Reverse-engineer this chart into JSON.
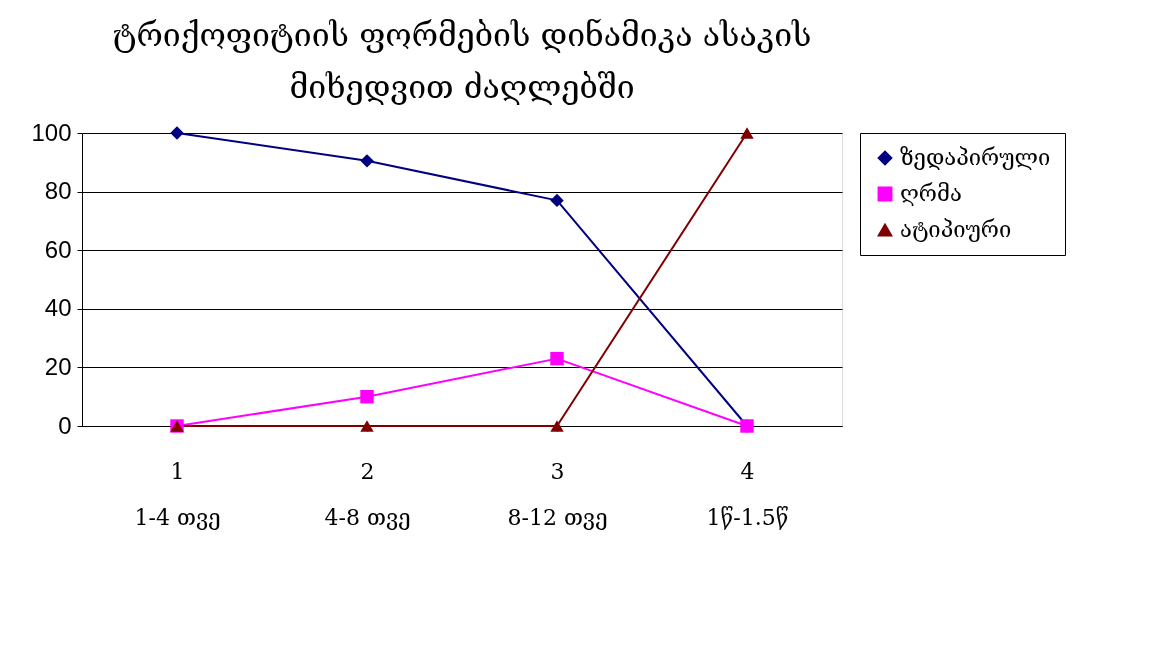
{
  "chart_data": {
    "type": "line",
    "title": "ტრიქოფიტიის ფორმების დინამიკა ასაკის\nმიხედვით ძაღლებში",
    "categories": [
      "1\n1-4 თვე",
      "2\n4-8 თვე",
      "3\n8-12 თვე",
      "4\n1წ-1.5წ"
    ],
    "series": [
      {
        "name": "ზედაპირული",
        "color": "#000080",
        "marker": "diamond",
        "values": [
          100,
          90.5,
          77,
          0
        ]
      },
      {
        "name": "ღრმა",
        "color": "#ff00ff",
        "marker": "square",
        "values": [
          0,
          10,
          23,
          0
        ]
      },
      {
        "name": "ატიპიური",
        "color": "#800000",
        "marker": "triangle",
        "values": [
          0,
          0,
          0,
          100
        ]
      }
    ],
    "ylim": [
      0,
      100
    ],
    "yticks": [
      0,
      20,
      40,
      60,
      80,
      100
    ],
    "grid": "y",
    "legend": "right"
  }
}
